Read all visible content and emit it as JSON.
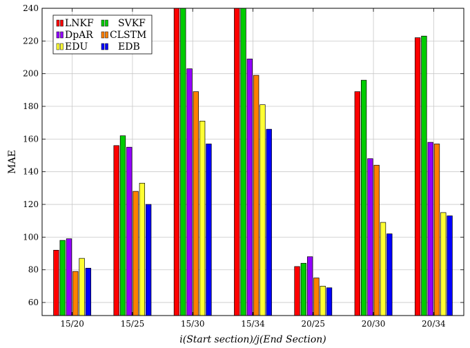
{
  "chart_data": {
    "type": "bar",
    "title": "",
    "xlabel": "i(Start section)/j(End Section)",
    "ylabel": "MAE",
    "ylim": [
      52,
      240
    ],
    "yticks": [
      60,
      80,
      100,
      120,
      140,
      160,
      180,
      200,
      220,
      240
    ],
    "grid": true,
    "legend_position": "top-left",
    "categories": [
      "15/20",
      "15/25",
      "15/30",
      "15/34",
      "20/25",
      "20/30",
      "20/34"
    ],
    "series": [
      {
        "name": "LNKF",
        "color": "#ff0000",
        "values": [
          92,
          156,
          240,
          240,
          82,
          189,
          222
        ]
      },
      {
        "name": "SVKF",
        "color": "#00cc00",
        "values": [
          98,
          162,
          240,
          240,
          84,
          196,
          223
        ]
      },
      {
        "name": "DpAR",
        "color": "#9400ff",
        "values": [
          99,
          155,
          203,
          209,
          88,
          148,
          158
        ]
      },
      {
        "name": "CLSTM",
        "color": "#ff8000",
        "values": [
          79,
          128,
          189,
          199,
          75,
          144,
          157
        ]
      },
      {
        "name": "EDU",
        "color": "#ffff33",
        "values": [
          87,
          133,
          171,
          181,
          70,
          109,
          115
        ]
      },
      {
        "name": "EDB",
        "color": "#0000ff",
        "values": [
          81,
          120,
          157,
          166,
          69,
          102,
          113
        ]
      }
    ]
  }
}
